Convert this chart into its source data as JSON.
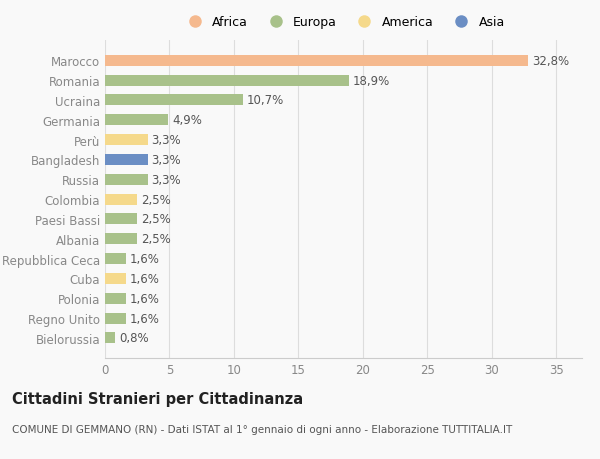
{
  "countries": [
    "Marocco",
    "Romania",
    "Ucraina",
    "Germania",
    "Perù",
    "Bangladesh",
    "Russia",
    "Colombia",
    "Paesi Bassi",
    "Albania",
    "Repubblica Ceca",
    "Cuba",
    "Polonia",
    "Regno Unito",
    "Bielorussia"
  ],
  "values": [
    32.8,
    18.9,
    10.7,
    4.9,
    3.3,
    3.3,
    3.3,
    2.5,
    2.5,
    2.5,
    1.6,
    1.6,
    1.6,
    1.6,
    0.8
  ],
  "labels": [
    "32,8%",
    "18,9%",
    "10,7%",
    "4,9%",
    "3,3%",
    "3,3%",
    "3,3%",
    "2,5%",
    "2,5%",
    "2,5%",
    "1,6%",
    "1,6%",
    "1,6%",
    "1,6%",
    "0,8%"
  ],
  "colors": [
    "#f5b98e",
    "#a8c18a",
    "#a8c18a",
    "#a8c18a",
    "#f5d98b",
    "#6b8ec4",
    "#a8c18a",
    "#f5d98b",
    "#a8c18a",
    "#a8c18a",
    "#a8c18a",
    "#f5d98b",
    "#a8c18a",
    "#a8c18a",
    "#a8c18a"
  ],
  "legend_items": [
    {
      "label": "Africa",
      "color": "#f5b98e"
    },
    {
      "label": "Europa",
      "color": "#a8c18a"
    },
    {
      "label": "America",
      "color": "#f5d98b"
    },
    {
      "label": "Asia",
      "color": "#6b8ec4"
    }
  ],
  "title": "Cittadini Stranieri per Cittadinanza",
  "subtitle": "COMUNE DI GEMMANO (RN) - Dati ISTAT al 1° gennaio di ogni anno - Elaborazione TUTTITALIA.IT",
  "xlim": [
    0,
    37
  ],
  "xticks": [
    0,
    5,
    10,
    15,
    20,
    25,
    30,
    35
  ],
  "bg_color": "#f9f9f9",
  "bar_height": 0.55,
  "label_fontsize": 8.5,
  "tick_fontsize": 8.5,
  "title_fontsize": 10.5,
  "subtitle_fontsize": 7.5
}
